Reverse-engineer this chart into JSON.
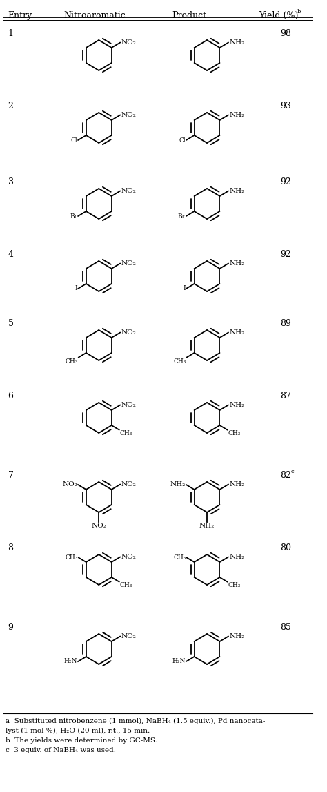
{
  "bg_color": "#ffffff",
  "text_color": "#000000",
  "line_color": "#000000",
  "header_font_size": 9,
  "font_size": 9,
  "chem_font_size": 7.5,
  "sub_font_size": 6.5,
  "footnote_font_size": 7.5,
  "entries": [
    {
      "num": "1",
      "yield": "98",
      "sup": ""
    },
    {
      "num": "2",
      "yield": "93",
      "sup": ""
    },
    {
      "num": "3",
      "yield": "92",
      "sup": ""
    },
    {
      "num": "4",
      "yield": "92",
      "sup": ""
    },
    {
      "num": "5",
      "yield": "89",
      "sup": ""
    },
    {
      "num": "6",
      "yield": "87",
      "sup": ""
    },
    {
      "num": "7",
      "yield": "82",
      "sup": "c"
    },
    {
      "num": "8",
      "yield": "80",
      "sup": ""
    },
    {
      "num": "9",
      "yield": "85",
      "sup": ""
    }
  ],
  "footnotes": [
    "a  Substituted nitrobenzene (1 mmol), NaBH₄ (1.5 equiv.), Pd nanocata-",
    "lyst (1 mol %), H₂O (20 ml), r.t., 15 min.",
    "b  The yields were determined by GC-MS.",
    "c  3 equiv. of NaBH₄ was used."
  ]
}
